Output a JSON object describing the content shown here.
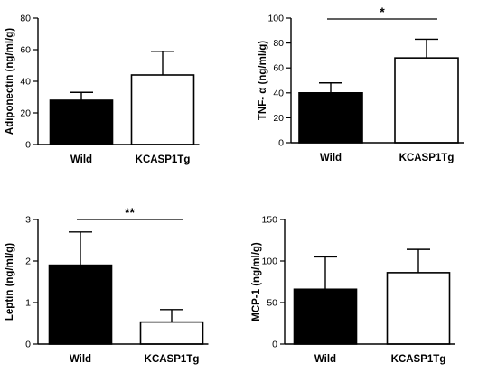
{
  "chart_data": [
    {
      "type": "bar",
      "categories": [
        "Wild",
        "KCASP1Tg"
      ],
      "values": [
        28,
        44
      ],
      "errors": [
        5,
        15
      ],
      "bar_fill": [
        "#000000",
        "#ffffff"
      ],
      "ylabel": "Adiponectin (ng/ml/g)",
      "ylim": [
        0,
        80
      ],
      "yticks": [
        0,
        20,
        40,
        60,
        80
      ],
      "significance": null
    },
    {
      "type": "bar",
      "categories": [
        "Wild",
        "KCASP1Tg"
      ],
      "values": [
        40,
        68
      ],
      "errors": [
        8,
        15
      ],
      "bar_fill": [
        "#000000",
        "#ffffff"
      ],
      "ylabel": "TNF- α (ng/ml/g)",
      "ylim": [
        0,
        100
      ],
      "yticks": [
        0,
        20,
        40,
        60,
        80,
        100
      ],
      "significance": "*"
    },
    {
      "type": "bar",
      "categories": [
        "Wild",
        "KCASP1Tg"
      ],
      "values": [
        1.9,
        0.53
      ],
      "errors": [
        0.8,
        0.3
      ],
      "bar_fill": [
        "#000000",
        "#ffffff"
      ],
      "ylabel": "Leptin (ng/ml/g)",
      "ylim": [
        0,
        3
      ],
      "yticks": [
        0,
        1,
        2,
        3
      ],
      "significance": "**"
    },
    {
      "type": "bar",
      "categories": [
        "Wild",
        "KCASP1Tg"
      ],
      "values": [
        66,
        86
      ],
      "errors": [
        39,
        28
      ],
      "bar_fill": [
        "#000000",
        "#ffffff"
      ],
      "ylabel": "MCP-1 (ng/ml/g)",
      "ylim": [
        0,
        150
      ],
      "yticks": [
        0,
        50,
        100,
        150
      ],
      "significance": null
    }
  ]
}
